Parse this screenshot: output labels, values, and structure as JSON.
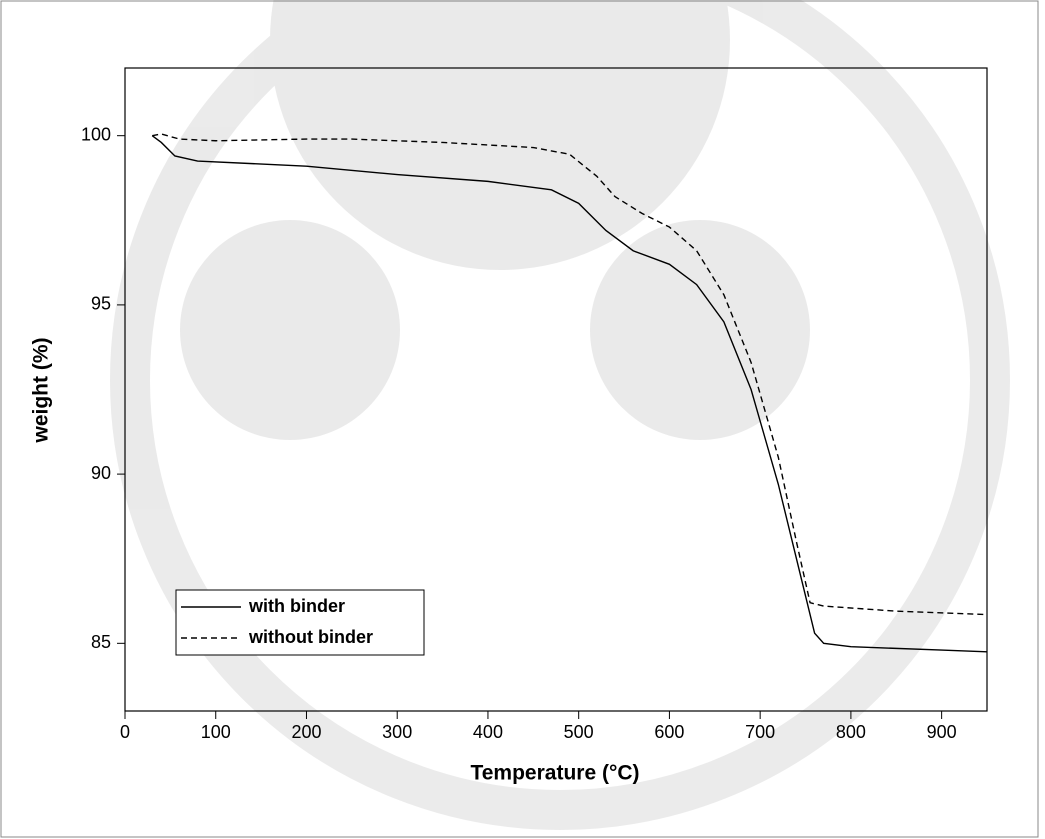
{
  "chart_data": {
    "type": "line",
    "x_label": "Temperature (°C)",
    "y_label": "weight (%)",
    "xlim": [
      0,
      950
    ],
    "xticks": [
      0,
      100,
      200,
      300,
      400,
      500,
      600,
      700,
      800,
      900
    ],
    "ylim": [
      83,
      102
    ],
    "yticks": [
      85,
      90,
      95,
      100
    ],
    "legend": "lower left",
    "series": [
      {
        "name": "with binder",
        "color": "#000000",
        "dash": "solid",
        "x": [
          30,
          40,
          55,
          80,
          200,
          300,
          400,
          470,
          500,
          530,
          560,
          600,
          630,
          660,
          690,
          720,
          740,
          760,
          770,
          800,
          900,
          950
        ],
        "values": [
          100,
          99.8,
          99.4,
          99.25,
          99.1,
          98.85,
          98.65,
          98.4,
          98.0,
          97.2,
          96.6,
          96.2,
          95.6,
          94.5,
          92.5,
          89.7,
          87.5,
          85.3,
          85.0,
          84.9,
          84.8,
          84.75
        ]
      },
      {
        "name": "without binder",
        "color": "#000000",
        "dash": "dashed",
        "x": [
          30,
          40,
          60,
          100,
          200,
          250,
          350,
          450,
          490,
          520,
          540,
          570,
          600,
          630,
          660,
          690,
          720,
          740,
          755,
          770,
          850,
          950
        ],
        "values": [
          100,
          100.05,
          99.9,
          99.85,
          99.9,
          99.9,
          99.8,
          99.65,
          99.45,
          98.8,
          98.2,
          97.7,
          97.3,
          96.6,
          95.3,
          93.3,
          90.5,
          88.0,
          86.2,
          86.1,
          85.95,
          85.85
        ]
      }
    ]
  }
}
